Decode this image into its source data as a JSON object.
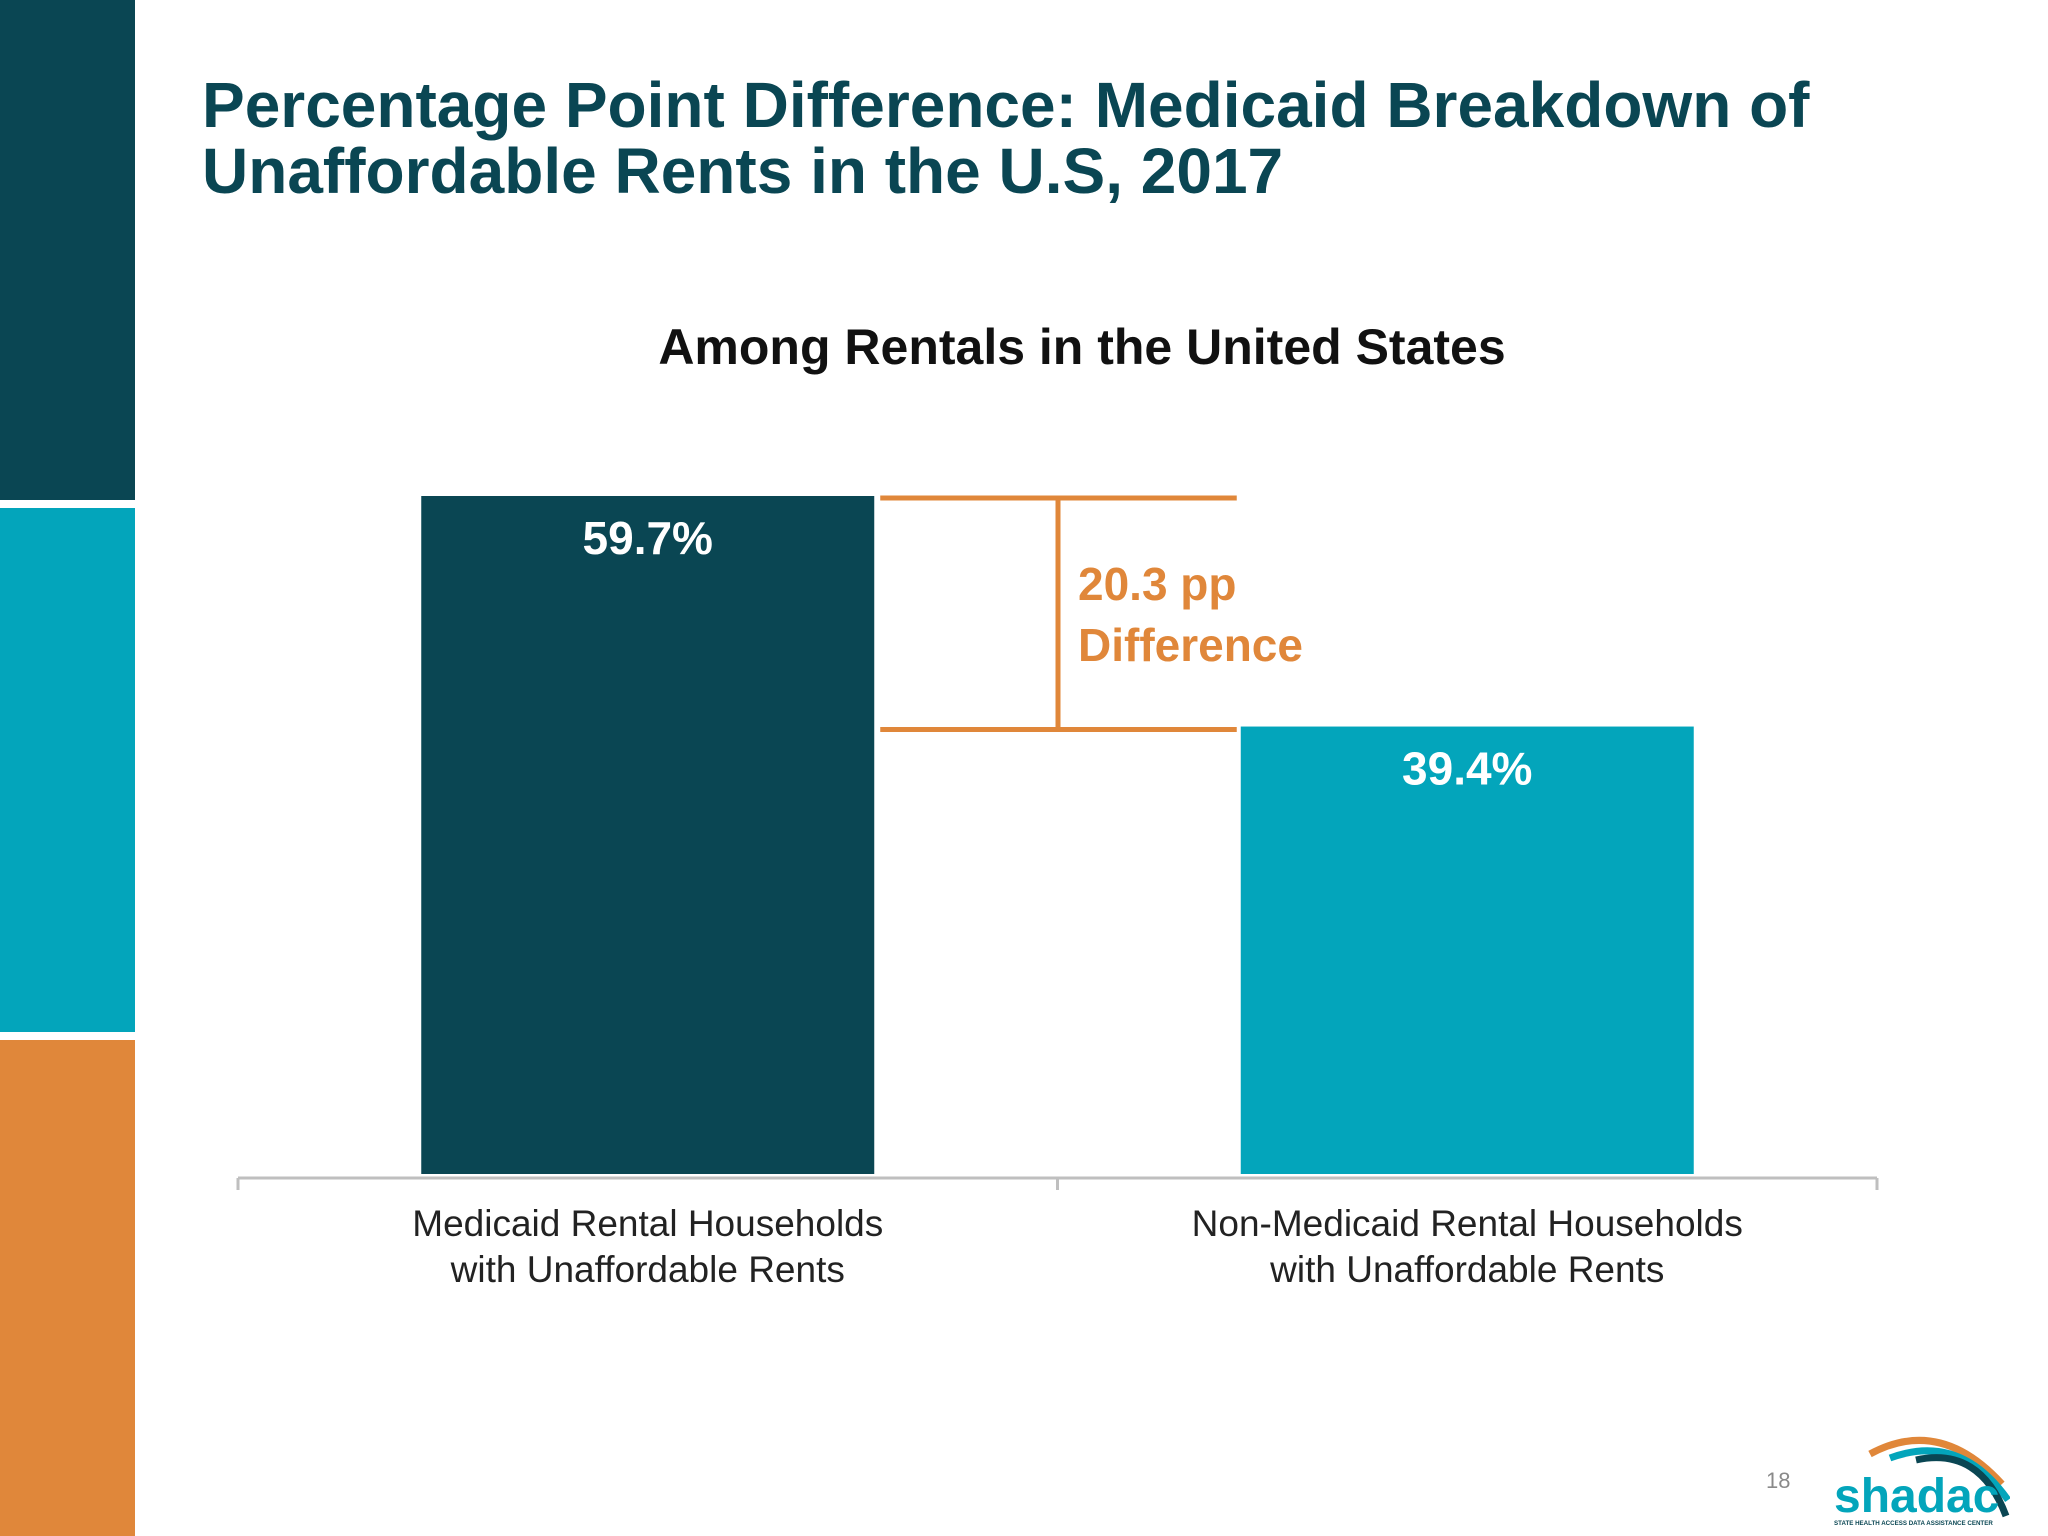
{
  "slide": {
    "title_line1": "Percentage Point Difference: Medicaid Breakdown of",
    "title_line2": "Unaffordable Rents in the U.S, 2017",
    "page_number": "18",
    "logo_text": "shadac",
    "logo_subtext": "STATE HEALTH ACCESS DATA ASSISTANCE CENTER"
  },
  "colors": {
    "dark_teal": "#0a4653",
    "teal": "#03a5bb",
    "orange": "#e0873a",
    "axis": "#bfbfbf"
  },
  "chart_data": {
    "type": "bar",
    "title": "Among Rentals in the United States",
    "categories": [
      [
        "Medicaid Rental Households",
        "with Unaffordable Rents"
      ],
      [
        "Non-Medicaid Rental Households",
        "with Unaffordable Rents"
      ]
    ],
    "values": [
      59.7,
      39.4
    ],
    "value_labels": [
      "59.7%",
      "39.4%"
    ],
    "bar_colors": [
      "#0a4653",
      "#03a5bb"
    ],
    "ylim": [
      0,
      59.7
    ],
    "grid": false,
    "annotation": {
      "line1": "20.3 pp",
      "line2": "Difference",
      "from_value": 59.7,
      "to_value": 39.4,
      "color": "#e0873a"
    }
  }
}
